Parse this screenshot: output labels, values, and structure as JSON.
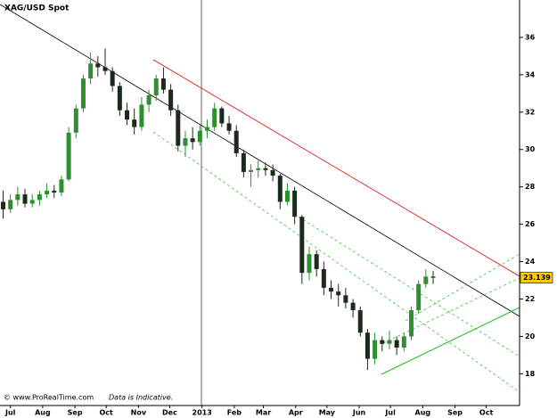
{
  "chart_data": {
    "type": "candlestick",
    "title": "XAG/USD Spot",
    "footer_copyright": "© www.ProRealTime.com",
    "footer_note": "Data is Indicative.",
    "up_color": "#2f8f2f",
    "down_color": "#1c2a1c",
    "xlim": [
      -10,
      489
    ],
    "xticks": [
      {
        "value": 0,
        "label": "Jul"
      },
      {
        "value": 31,
        "label": "Aug"
      },
      {
        "value": 62,
        "label": "Sep"
      },
      {
        "value": 92,
        "label": "Oct"
      },
      {
        "value": 123,
        "label": "Nov"
      },
      {
        "value": 153,
        "label": "Dec"
      },
      {
        "value": 184,
        "label": "2013"
      },
      {
        "value": 215,
        "label": "Feb"
      },
      {
        "value": 243,
        "label": "Mar"
      },
      {
        "value": 274,
        "label": "Apr"
      },
      {
        "value": 304,
        "label": "May"
      },
      {
        "value": 335,
        "label": "Jun"
      },
      {
        "value": 365,
        "label": "Jul"
      },
      {
        "value": 396,
        "label": "Aug"
      },
      {
        "value": 427,
        "label": "Sep"
      },
      {
        "value": 457,
        "label": "Oct"
      }
    ],
    "ylim": [
      16.3,
      38
    ],
    "yticks": [
      18,
      20,
      22,
      24,
      26,
      28,
      30,
      32,
      34,
      36
    ],
    "x": [
      -7,
      0,
      7,
      14,
      21,
      28,
      35,
      42,
      49,
      56,
      63,
      70,
      77,
      84,
      91,
      98,
      105,
      112,
      119,
      126,
      133,
      140,
      147,
      154,
      161,
      168,
      175,
      182,
      189,
      196,
      203,
      210,
      217,
      224,
      231,
      238,
      245,
      252,
      259,
      266,
      273,
      280,
      287,
      294,
      301,
      308,
      315,
      322,
      329,
      336,
      343,
      350,
      357,
      364,
      371,
      378,
      385,
      392,
      399,
      406
    ],
    "open": [
      27.2,
      26.8,
      27.3,
      27.6,
      27.1,
      27.3,
      27.6,
      27.8,
      27.7,
      28.4,
      30.9,
      32.2,
      33.8,
      34.6,
      34.4,
      34.2,
      33.4,
      32.1,
      31.6,
      31.2,
      32.4,
      32.9,
      33.8,
      33.2,
      32.1,
      30.2,
      30.6,
      30.4,
      31.0,
      31.2,
      32.2,
      31.4,
      31.0,
      29.8,
      28.8,
      28.9,
      29.0,
      28.9,
      28.6,
      27.2,
      27.8,
      26.4,
      23.4,
      24.4,
      23.6,
      22.6,
      22.4,
      22.2,
      21.8,
      21.4,
      20.2,
      18.8,
      19.8,
      19.6,
      19.8,
      19.4,
      20.0,
      21.4,
      22.8,
      23.2
    ],
    "high": [
      27.8,
      27.6,
      28.0,
      27.9,
      27.6,
      27.8,
      28.2,
      28.1,
      28.6,
      31.2,
      32.4,
      34.0,
      35.2,
      35.0,
      35.4,
      34.4,
      33.6,
      32.5,
      32.2,
      32.8,
      33.2,
      34.0,
      34.4,
      33.5,
      32.4,
      31.0,
      31.2,
      31.3,
      31.6,
      32.5,
      32.3,
      31.8,
      31.3,
      30.0,
      29.2,
      29.4,
      29.3,
      29.2,
      28.7,
      28.2,
      28.0,
      26.5,
      24.8,
      24.6,
      24.0,
      23.0,
      22.8,
      22.6,
      22.0,
      21.6,
      20.4,
      20.2,
      20.0,
      20.3,
      20.0,
      20.2,
      21.6,
      23.0,
      23.6,
      23.5
    ],
    "low": [
      26.3,
      26.6,
      27.0,
      26.9,
      26.9,
      27.0,
      27.4,
      27.4,
      27.5,
      28.3,
      30.6,
      32.0,
      33.5,
      33.9,
      34.0,
      33.1,
      31.8,
      31.3,
      30.8,
      31.0,
      32.0,
      32.6,
      33.0,
      31.8,
      29.9,
      29.6,
      30.0,
      30.2,
      30.6,
      31.0,
      31.2,
      30.8,
      29.6,
      28.5,
      28.0,
      28.5,
      28.6,
      28.3,
      26.8,
      27.0,
      26.0,
      22.8,
      23.0,
      23.2,
      22.2,
      22.0,
      21.6,
      21.5,
      21.0,
      20.0,
      18.2,
      18.5,
      19.2,
      19.3,
      19.0,
      19.2,
      19.8,
      21.2,
      22.6,
      22.8
    ],
    "close": [
      26.8,
      27.3,
      27.6,
      27.1,
      27.3,
      27.6,
      27.8,
      27.7,
      28.4,
      30.9,
      32.2,
      33.8,
      34.6,
      34.4,
      34.2,
      33.4,
      32.1,
      31.6,
      31.2,
      32.4,
      32.9,
      33.8,
      33.2,
      32.1,
      30.2,
      30.6,
      30.4,
      31.0,
      31.2,
      32.2,
      31.4,
      31.0,
      29.8,
      28.8,
      28.9,
      29.0,
      28.9,
      28.6,
      27.2,
      27.8,
      26.4,
      23.4,
      24.4,
      23.6,
      22.6,
      22.4,
      22.2,
      21.8,
      21.4,
      20.2,
      18.8,
      19.8,
      19.6,
      19.8,
      19.4,
      20.0,
      21.4,
      22.8,
      23.2,
      23.139
    ]
  }
}
